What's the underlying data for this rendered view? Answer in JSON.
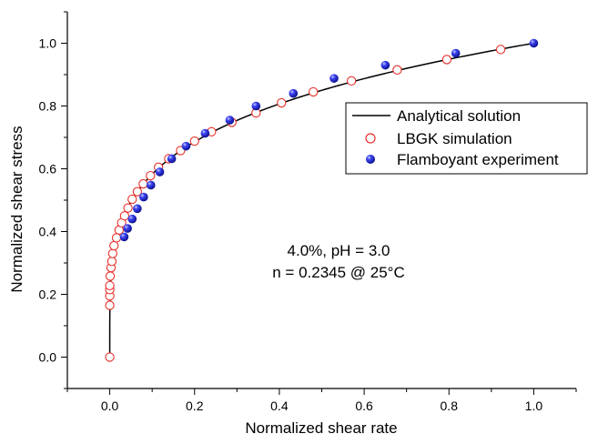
{
  "chart_data": {
    "type": "scatter",
    "title": "",
    "xlabel": "Normalized shear rate",
    "ylabel": "Normalized shear stress",
    "xlim": [
      -0.1,
      1.1
    ],
    "ylim": [
      -0.1,
      1.1
    ],
    "x_ticks": [
      0.0,
      0.2,
      0.4,
      0.6,
      0.8,
      1.0
    ],
    "x_tick_labels": [
      "0.0",
      "0.2",
      "0.4",
      "0.6",
      "0.8",
      "1.0"
    ],
    "y_ticks": [
      0.0,
      0.2,
      0.4,
      0.6,
      0.8,
      1.0
    ],
    "y_tick_labels": [
      "0.0",
      "0.2",
      "0.4",
      "0.6",
      "0.8",
      "1.0"
    ],
    "grid": false,
    "legend_position": "right",
    "annotations": [
      "4.0%, pH = 3.0",
      "n = 0.2345 @ 25°C"
    ],
    "series": [
      {
        "name": "Analytical solution",
        "kind": "line",
        "color": "#000000",
        "model": "power-law",
        "exponent": 0.2345
      },
      {
        "name": "LBGK simulation",
        "kind": "marker",
        "marker": "open-circle",
        "color": "#e8302a",
        "points": [
          [
            0.0,
            0.0
          ],
          [
            0.0,
            0.165
          ],
          [
            0.0,
            0.195
          ],
          [
            0.0,
            0.215
          ],
          [
            0.0,
            0.228
          ],
          [
            0.001,
            0.258
          ],
          [
            0.003,
            0.285
          ],
          [
            0.005,
            0.305
          ],
          [
            0.007,
            0.33
          ],
          [
            0.01,
            0.355
          ],
          [
            0.016,
            0.38
          ],
          [
            0.022,
            0.405
          ],
          [
            0.028,
            0.428
          ],
          [
            0.035,
            0.45
          ],
          [
            0.043,
            0.475
          ],
          [
            0.053,
            0.503
          ],
          [
            0.065,
            0.527
          ],
          [
            0.079,
            0.552
          ],
          [
            0.096,
            0.578
          ],
          [
            0.115,
            0.605
          ],
          [
            0.139,
            0.632
          ],
          [
            0.167,
            0.658
          ],
          [
            0.2,
            0.688
          ],
          [
            0.24,
            0.718
          ],
          [
            0.288,
            0.748
          ],
          [
            0.345,
            0.778
          ],
          [
            0.405,
            0.81
          ],
          [
            0.48,
            0.845
          ],
          [
            0.57,
            0.88
          ],
          [
            0.678,
            0.915
          ],
          [
            0.795,
            0.948
          ],
          [
            0.922,
            0.98
          ]
        ]
      },
      {
        "name": "Flamboyant experiment",
        "kind": "marker",
        "marker": "filled-sphere",
        "color": "#1a22e0",
        "points": [
          [
            0.034,
            0.383
          ],
          [
            0.042,
            0.41
          ],
          [
            0.053,
            0.44
          ],
          [
            0.065,
            0.473
          ],
          [
            0.08,
            0.51
          ],
          [
            0.097,
            0.548
          ],
          [
            0.118,
            0.59
          ],
          [
            0.146,
            0.632
          ],
          [
            0.18,
            0.672
          ],
          [
            0.225,
            0.713
          ],
          [
            0.283,
            0.755
          ],
          [
            0.345,
            0.8
          ],
          [
            0.433,
            0.84
          ],
          [
            0.529,
            0.888
          ],
          [
            0.65,
            0.93
          ],
          [
            0.816,
            0.968
          ],
          [
            1.0,
            1.0
          ]
        ]
      }
    ]
  }
}
